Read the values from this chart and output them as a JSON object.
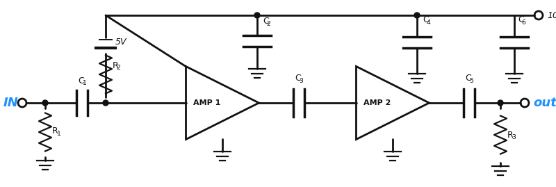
{
  "bg_color": "#ffffff",
  "ink_color": "#111111",
  "blue_color": "#1E90FF",
  "fig_w": 8.0,
  "fig_h": 2.69,
  "dpi": 100,
  "xlim": [
    0,
    800
  ],
  "ylim": [
    0,
    269
  ]
}
